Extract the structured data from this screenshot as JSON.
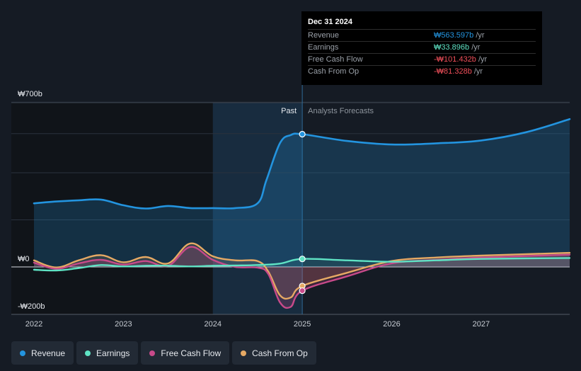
{
  "chart_data": {
    "type": "area",
    "y_labels": {
      "top": "₩700b",
      "zero": "₩0",
      "bottom": "-₩200b"
    },
    "ylim": [
      -200,
      700
    ],
    "x_ticks": [
      "2022",
      "2023",
      "2024",
      "2025",
      "2026",
      "2027"
    ],
    "x_tick_values": [
      2022,
      2023,
      2024,
      2025,
      2026,
      2027
    ],
    "xlim": [
      2021.8,
      2027.99
    ],
    "past_label": "Past",
    "forecast_label": "Analysts Forecasts",
    "divider_x": 2025.0,
    "past_shade_start": 2024.0,
    "series": [
      {
        "name": "Revenue",
        "color": "#2394df",
        "points": [
          [
            2022.0,
            270
          ],
          [
            2022.25,
            278
          ],
          [
            2022.5,
            283
          ],
          [
            2022.75,
            286
          ],
          [
            2023.0,
            262
          ],
          [
            2023.25,
            248
          ],
          [
            2023.5,
            259
          ],
          [
            2023.75,
            250
          ],
          [
            2024.0,
            250
          ],
          [
            2024.25,
            250
          ],
          [
            2024.5,
            270
          ],
          [
            2024.6,
            370
          ],
          [
            2024.75,
            525
          ],
          [
            2024.87,
            560
          ],
          [
            2025.0,
            564
          ],
          [
            2025.5,
            535
          ],
          [
            2026.0,
            520
          ],
          [
            2026.5,
            525
          ],
          [
            2027.0,
            537
          ],
          [
            2027.5,
            572
          ],
          [
            2027.99,
            628
          ]
        ]
      },
      {
        "name": "Earnings",
        "color": "#5fe3c4",
        "points": [
          [
            2022.0,
            -12
          ],
          [
            2022.25,
            -15
          ],
          [
            2022.5,
            -5
          ],
          [
            2022.75,
            8
          ],
          [
            2023.0,
            2
          ],
          [
            2023.25,
            5
          ],
          [
            2023.5,
            5
          ],
          [
            2023.75,
            2
          ],
          [
            2024.0,
            5
          ],
          [
            2024.25,
            6
          ],
          [
            2024.5,
            8
          ],
          [
            2024.75,
            14
          ],
          [
            2025.0,
            34
          ],
          [
            2025.5,
            28
          ],
          [
            2026.0,
            22
          ],
          [
            2026.5,
            28
          ],
          [
            2027.0,
            34
          ],
          [
            2027.99,
            38
          ]
        ]
      },
      {
        "name": "Free Cash Flow",
        "color": "#c84a8a",
        "points": [
          [
            2022.0,
            18
          ],
          [
            2022.25,
            -8
          ],
          [
            2022.5,
            15
          ],
          [
            2022.75,
            30
          ],
          [
            2023.0,
            10
          ],
          [
            2023.25,
            25
          ],
          [
            2023.5,
            5
          ],
          [
            2023.75,
            85
          ],
          [
            2024.0,
            30
          ],
          [
            2024.25,
            0
          ],
          [
            2024.5,
            -3
          ],
          [
            2024.62,
            -30
          ],
          [
            2024.75,
            -150
          ],
          [
            2024.87,
            -170
          ],
          [
            2025.0,
            -101
          ],
          [
            2025.5,
            -40
          ],
          [
            2026.0,
            15
          ],
          [
            2026.5,
            30
          ],
          [
            2027.0,
            40
          ],
          [
            2027.99,
            52
          ]
        ]
      },
      {
        "name": "Cash From Op",
        "color": "#e6a964",
        "points": [
          [
            2022.0,
            28
          ],
          [
            2022.25,
            -2
          ],
          [
            2022.5,
            28
          ],
          [
            2022.75,
            50
          ],
          [
            2023.0,
            20
          ],
          [
            2023.25,
            42
          ],
          [
            2023.5,
            15
          ],
          [
            2023.75,
            100
          ],
          [
            2024.0,
            45
          ],
          [
            2024.25,
            28
          ],
          [
            2024.5,
            25
          ],
          [
            2024.62,
            -20
          ],
          [
            2024.75,
            -120
          ],
          [
            2024.87,
            -130
          ],
          [
            2025.0,
            -81
          ],
          [
            2025.5,
            -25
          ],
          [
            2026.0,
            25
          ],
          [
            2026.5,
            40
          ],
          [
            2027.0,
            48
          ],
          [
            2027.99,
            60
          ]
        ]
      }
    ],
    "highlight_x": 2025.0
  },
  "tooltip": {
    "date": "Dec 31 2024",
    "rows": [
      {
        "label": "Revenue",
        "value": "₩563.597b",
        "unit": " /yr",
        "color": "#2394df"
      },
      {
        "label": "Earnings",
        "value": "₩33.896b",
        "unit": " /yr",
        "color": "#5fe3c4"
      },
      {
        "label": "Free Cash Flow",
        "value": "-₩101.432b",
        "unit": " /yr",
        "color": "#f04f5a"
      },
      {
        "label": "Cash From Op",
        "value": "-₩81.328b",
        "unit": " /yr",
        "color": "#f04f5a"
      }
    ]
  },
  "legend": [
    {
      "label": "Revenue",
      "color": "#2394df"
    },
    {
      "label": "Earnings",
      "color": "#5fe3c4"
    },
    {
      "label": "Free Cash Flow",
      "color": "#c84a8a"
    },
    {
      "label": "Cash From Op",
      "color": "#e6a964"
    }
  ]
}
